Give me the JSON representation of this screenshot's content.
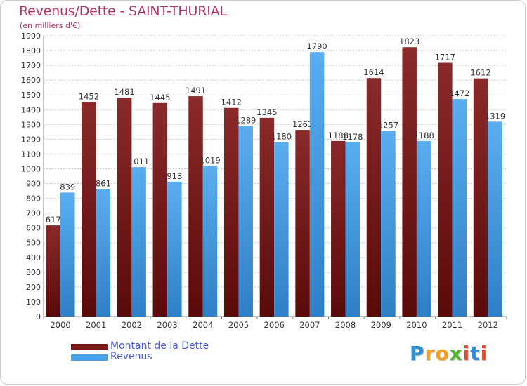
{
  "title": "Revenus/Dette - SAINT-THURIAL",
  "subtitle": "(en milliers d'€)",
  "legend": [
    {
      "label": "Montant de la Dette",
      "color": "#7a1717"
    },
    {
      "label": "Revenus",
      "color": "#4aa0e3"
    }
  ],
  "logo": {
    "letters": [
      {
        "ch": "P",
        "color": "#2e8fd6"
      },
      {
        "ch": "r",
        "color": "#f0a020"
      },
      {
        "ch": "o",
        "color": "#f0a020"
      },
      {
        "ch": "x",
        "color": "#4db830"
      },
      {
        "ch": "i",
        "color": "#e64a2e"
      },
      {
        "ch": "t",
        "color": "#2e8fd6"
      },
      {
        "ch": "i",
        "color": "#e64a2e"
      }
    ]
  },
  "chart_data": {
    "type": "bar",
    "categories": [
      "2000",
      "2001",
      "2002",
      "2003",
      "2004",
      "2005",
      "2006",
      "2007",
      "2008",
      "2009",
      "2010",
      "2011",
      "2012"
    ],
    "series": [
      {
        "name": "Montant de la Dette",
        "color": "#7a1717",
        "values": [
          617,
          1452,
          1481,
          1445,
          1491,
          1412,
          1345,
          1263,
          1188,
          1614,
          1823,
          1717,
          1612
        ],
        "labels": [
          "617",
          "1452",
          "1481",
          "1445",
          "1491",
          "1412",
          "1345",
          "1263",
          "1188",
          "1614",
          "1823",
          "1717",
          "1612"
        ]
      },
      {
        "name": "Revenus",
        "color": "#4aa0e3",
        "values": [
          839,
          861,
          1011,
          913,
          1019,
          1289,
          1180,
          1790,
          1178,
          1257,
          1188,
          1472,
          1319
        ],
        "labels": [
          "839",
          "861",
          "1011",
          "913",
          "1019",
          "1289",
          "1180",
          "1790",
          "1178",
          "1257",
          "1188",
          "1472",
          "1319"
        ]
      }
    ],
    "ylim": [
      0,
      1900
    ],
    "ytick_step": 100,
    "grid": true
  }
}
